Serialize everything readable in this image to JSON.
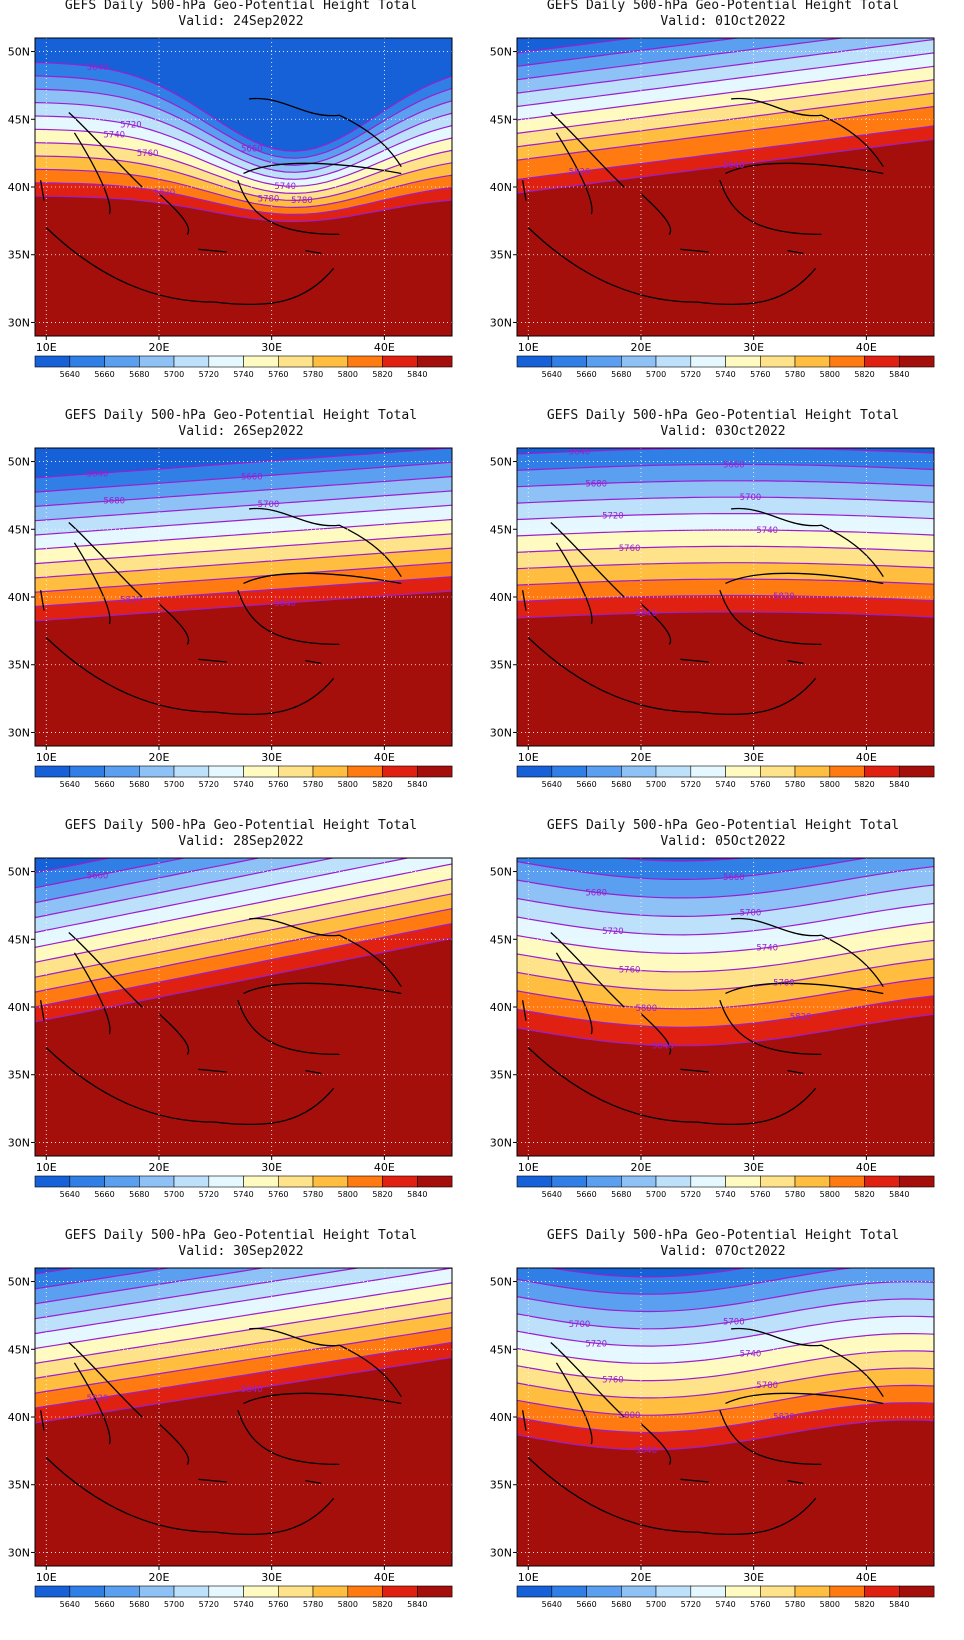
{
  "figure": {
    "title": "GEFS Daily 500-hPa Geo-Potential Height Total",
    "valid_prefix": "Valid:"
  },
  "axes": {
    "lat_ticks": [
      "50N",
      "45N",
      "40N",
      "35N",
      "30N"
    ],
    "lat_values": [
      50,
      45,
      40,
      35,
      30
    ],
    "lon_ticks": [
      "10E",
      "20E",
      "30E",
      "40E"
    ],
    "lon_values": [
      10,
      20,
      30,
      40
    ],
    "lon_range": [
      9,
      46
    ],
    "lat_range": [
      29,
      51
    ]
  },
  "colorbar": {
    "levels": [
      "5640",
      "5660",
      "5680",
      "5700",
      "5720",
      "5740",
      "5760",
      "5780",
      "5800",
      "5820",
      "5840"
    ],
    "colors": [
      "#1660d8",
      "#2f7fe6",
      "#5a9ff0",
      "#8ec1f6",
      "#bde0fb",
      "#e6f8ff",
      "#fffbc0",
      "#ffe38a",
      "#ffbe40",
      "#ff7a10",
      "#e02010",
      "#a50f0b"
    ]
  },
  "contour_color": "#9b1fd0",
  "panels": [
    {
      "valid": "24Sep2022",
      "clabels": [
        "5640",
        "5660",
        "5740",
        "5780",
        "5720",
        "5740",
        "5760",
        "5780",
        "5820"
      ]
    },
    {
      "valid": "01Oct2022",
      "clabels": [
        "5820",
        "5840"
      ]
    },
    {
      "valid": "26Sep2022",
      "clabels": [
        "5640",
        "5660",
        "5680",
        "5700",
        "5820",
        "5840"
      ]
    },
    {
      "valid": "03Oct2022",
      "clabels": [
        "5640",
        "5660",
        "5680",
        "5700",
        "5720",
        "5740",
        "5760",
        "5820",
        "5840"
      ]
    },
    {
      "valid": "28Sep2022",
      "clabels": [
        "5660"
      ]
    },
    {
      "valid": "05Oct2022",
      "clabels": [
        "5640",
        "5660",
        "5680",
        "5700",
        "5720",
        "5740",
        "5760",
        "5780",
        "5800",
        "5820",
        "5840"
      ]
    },
    {
      "valid": "30Sep2022",
      "clabels": [
        "5820",
        "5840"
      ]
    },
    {
      "valid": "07Oct2022",
      "clabels": [
        "5700",
        "5700",
        "5720",
        "5740",
        "5760",
        "5780",
        "5800",
        "5820",
        "5840"
      ]
    }
  ]
}
